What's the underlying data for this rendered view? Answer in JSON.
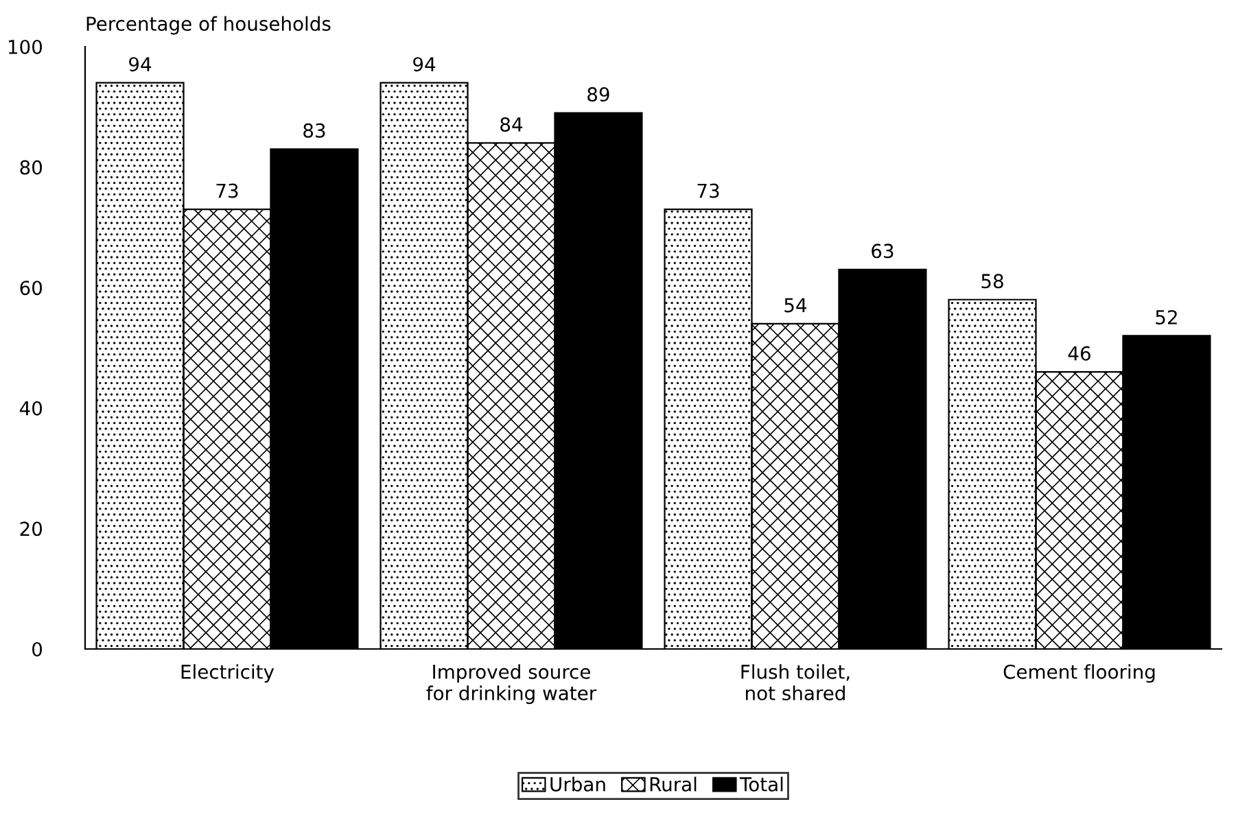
{
  "chart_data": {
    "type": "bar",
    "ylabel": "Percentage of households",
    "categories": [
      "Electricity",
      "Improved source\nfor drinking water",
      "Flush toilet,\nnot shared",
      "Cement flooring"
    ],
    "series": [
      {
        "name": "Urban",
        "color": "#ffffff",
        "values": [
          94,
          94,
          73,
          58
        ]
      },
      {
        "name": "Rural",
        "color": "#ffffff",
        "values": [
          73,
          84,
          54,
          46
        ]
      },
      {
        "name": "Total",
        "color": "#000000",
        "values": [
          83,
          89,
          63,
          52
        ]
      }
    ],
    "ylim": [
      0,
      100
    ],
    "yticks": [
      0,
      20,
      40,
      60,
      80,
      100
    ],
    "grid": false,
    "legend": "bottom",
    "data_labels": true
  }
}
